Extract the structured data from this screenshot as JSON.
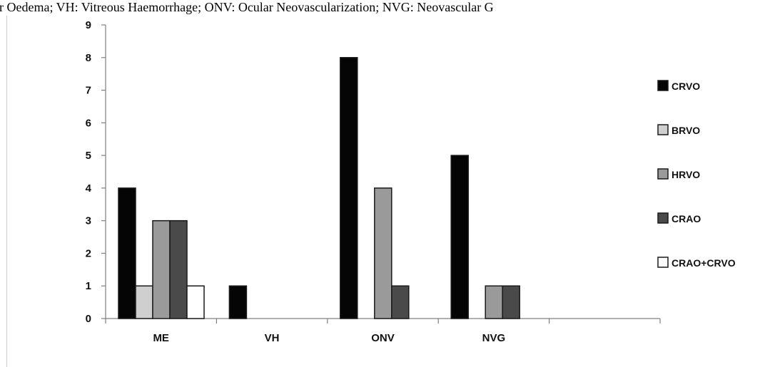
{
  "caption": "lar Oedema; VH: Vitreous Haemorrhage; ONV: Ocular Neovascularization; NVG: Neovascular G",
  "colors": {
    "CRVO": "#050505",
    "BRVO": "#cfcfcf",
    "HRVO": "#9a9a9a",
    "CRAO": "#4a4a4a",
    "CRAO+CRVO": "#ffffff",
    "axis": "#7f7f7f",
    "bar_stroke": "#1a1a1a"
  },
  "chart_data": {
    "type": "bar",
    "title": "",
    "xlabel": "",
    "ylabel": "",
    "ylim": [
      0,
      9
    ],
    "yticks": [
      0,
      1,
      2,
      3,
      4,
      5,
      6,
      7,
      8,
      9
    ],
    "grid": false,
    "legend_position": "right",
    "categories": [
      "ME",
      "VH",
      "ONV",
      "NVG",
      ""
    ],
    "series": [
      {
        "name": "CRVO",
        "values": [
          4,
          1,
          8,
          5,
          0
        ]
      },
      {
        "name": "BRVO",
        "values": [
          1,
          0,
          0,
          0,
          0
        ]
      },
      {
        "name": "HRVO",
        "values": [
          3,
          0,
          4,
          1,
          0
        ]
      },
      {
        "name": "CRAO",
        "values": [
          3,
          0,
          1,
          1,
          0
        ]
      },
      {
        "name": "CRAO+CRVO",
        "values": [
          1,
          0,
          0,
          0,
          0
        ]
      }
    ]
  }
}
